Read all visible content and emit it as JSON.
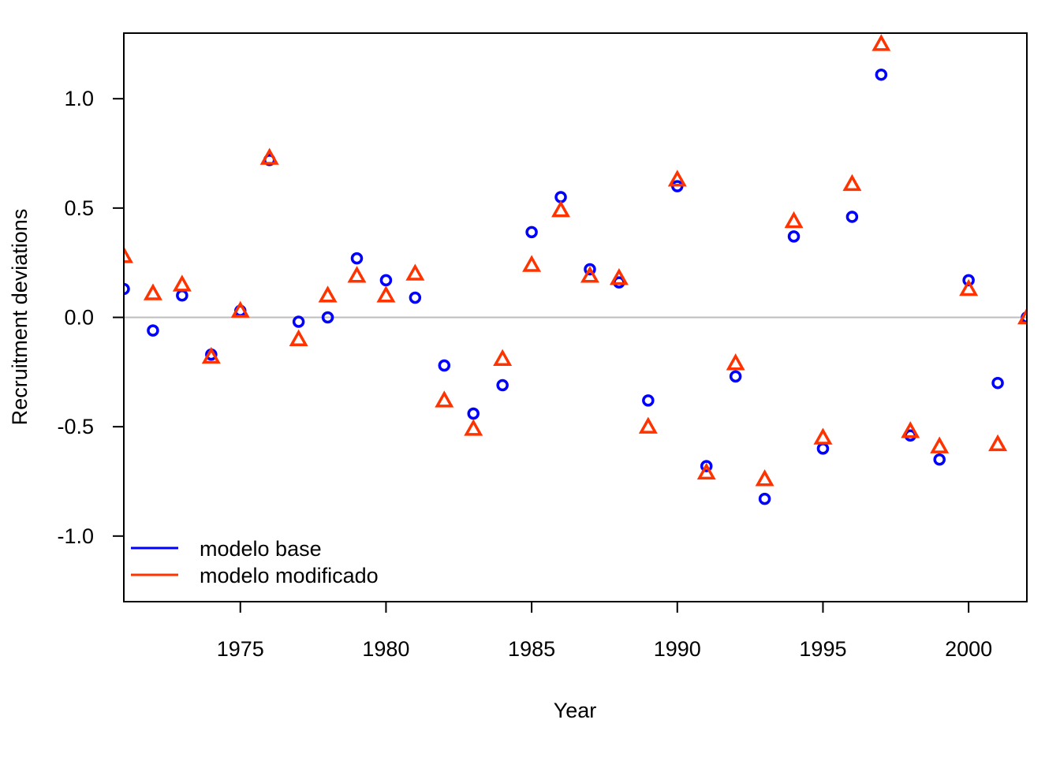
{
  "chart_data": {
    "type": "scatter",
    "title": "",
    "xlabel": "Year",
    "ylabel": "Recruitment deviations",
    "xlim": [
      1971,
      2002
    ],
    "ylim": [
      -1.3,
      1.3
    ],
    "x_ticks": [
      1975,
      1980,
      1985,
      1990,
      1995,
      2000
    ],
    "x_tick_labels": [
      "1975",
      "1980",
      "1985",
      "1990",
      "1995",
      "2000"
    ],
    "y_ticks": [
      -1.0,
      -0.5,
      0.0,
      0.5,
      1.0
    ],
    "y_tick_labels": [
      "-1.0",
      "-0.5",
      "0.0",
      "0.5",
      "1.0"
    ],
    "reference_line": {
      "y": 0,
      "color": "#bebebe"
    },
    "legend_position": "bottom-left",
    "x": [
      1971,
      1972,
      1973,
      1974,
      1975,
      1976,
      1977,
      1978,
      1979,
      1980,
      1981,
      1982,
      1983,
      1984,
      1985,
      1986,
      1987,
      1988,
      1989,
      1990,
      1991,
      1992,
      1993,
      1994,
      1995,
      1996,
      1997,
      1998,
      1999,
      2000,
      2001,
      2002
    ],
    "series": [
      {
        "name": "modelo base",
        "marker": "circle",
        "color": "#0000ff",
        "values": [
          0.13,
          -0.06,
          0.1,
          -0.17,
          0.03,
          0.72,
          -0.02,
          0.0,
          0.27,
          0.17,
          0.09,
          -0.22,
          -0.44,
          -0.31,
          0.39,
          0.55,
          0.22,
          0.16,
          -0.38,
          0.6,
          -0.68,
          -0.27,
          -0.83,
          0.37,
          -0.6,
          0.46,
          1.11,
          -0.54,
          -0.65,
          0.17,
          -0.3,
          0.0
        ]
      },
      {
        "name": "modelo modificado",
        "marker": "triangle",
        "color": "#ff3300",
        "values": [
          0.28,
          0.11,
          0.15,
          -0.18,
          0.03,
          0.73,
          -0.1,
          0.1,
          0.19,
          0.1,
          0.2,
          -0.38,
          -0.51,
          -0.19,
          0.24,
          0.49,
          0.19,
          0.18,
          -0.5,
          0.63,
          -0.71,
          -0.21,
          -0.74,
          0.44,
          -0.55,
          0.61,
          1.25,
          -0.52,
          -0.59,
          0.13,
          -0.58,
          0.0
        ]
      }
    ]
  }
}
